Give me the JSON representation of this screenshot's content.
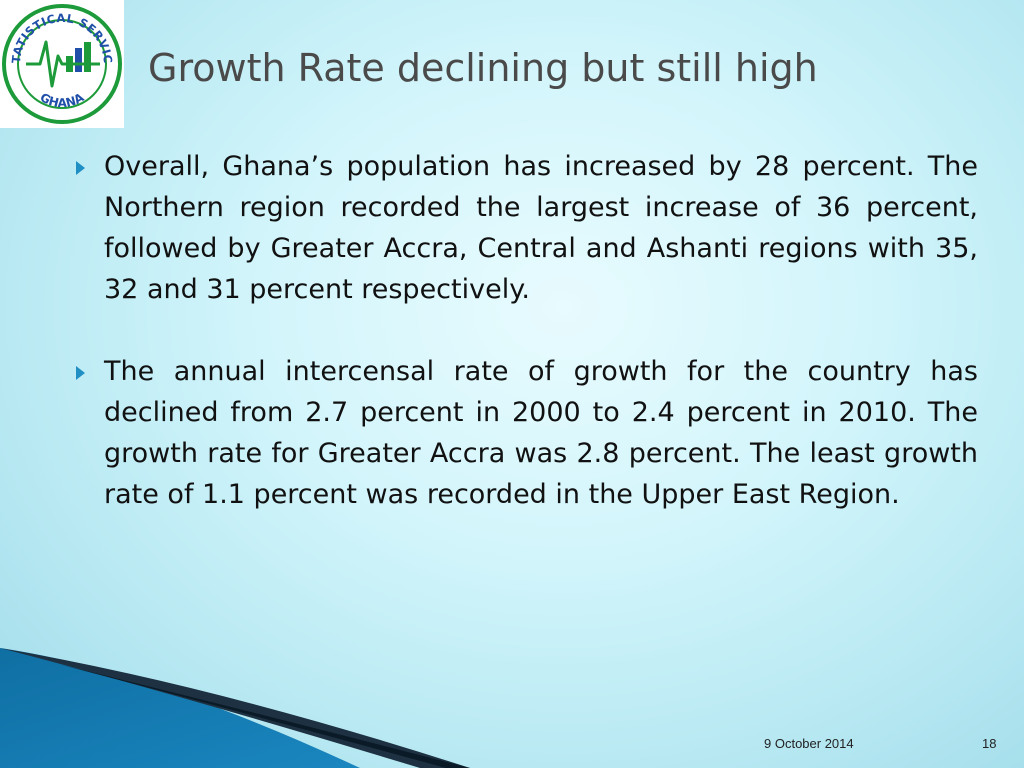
{
  "logo": {
    "top_text": "STATISTICAL SERVICE",
    "bottom_text": "GHANA",
    "icon": "pulse-bar-chart-emblem",
    "ring_color": "#1d9b3a",
    "accent_color": "#1f4fa8"
  },
  "slide": {
    "title": "Growth Rate declining but still high",
    "bullets": [
      {
        "text": "Overall, Ghana’s population has increased by 28 percent.  The Northern region recorded the largest increase of 36 percent, followed by Greater Accra, Central and Ashanti regions with 35, 32 and 31 percent respectively."
      },
      {
        "text": "The annual intercensal rate of growth for the country has declined from 2.7 percent in 2000 to 2.4 percent in 2010.  The growth rate for Greater Accra was 2.8 percent.  The least growth rate of 1.1 percent was recorded in the Upper East Region."
      }
    ],
    "bullet_icon": "triangle-bullet-icon",
    "bullet_color": "#1f8fc4"
  },
  "footer": {
    "date": "9 October 2014",
    "page_number": "18"
  }
}
